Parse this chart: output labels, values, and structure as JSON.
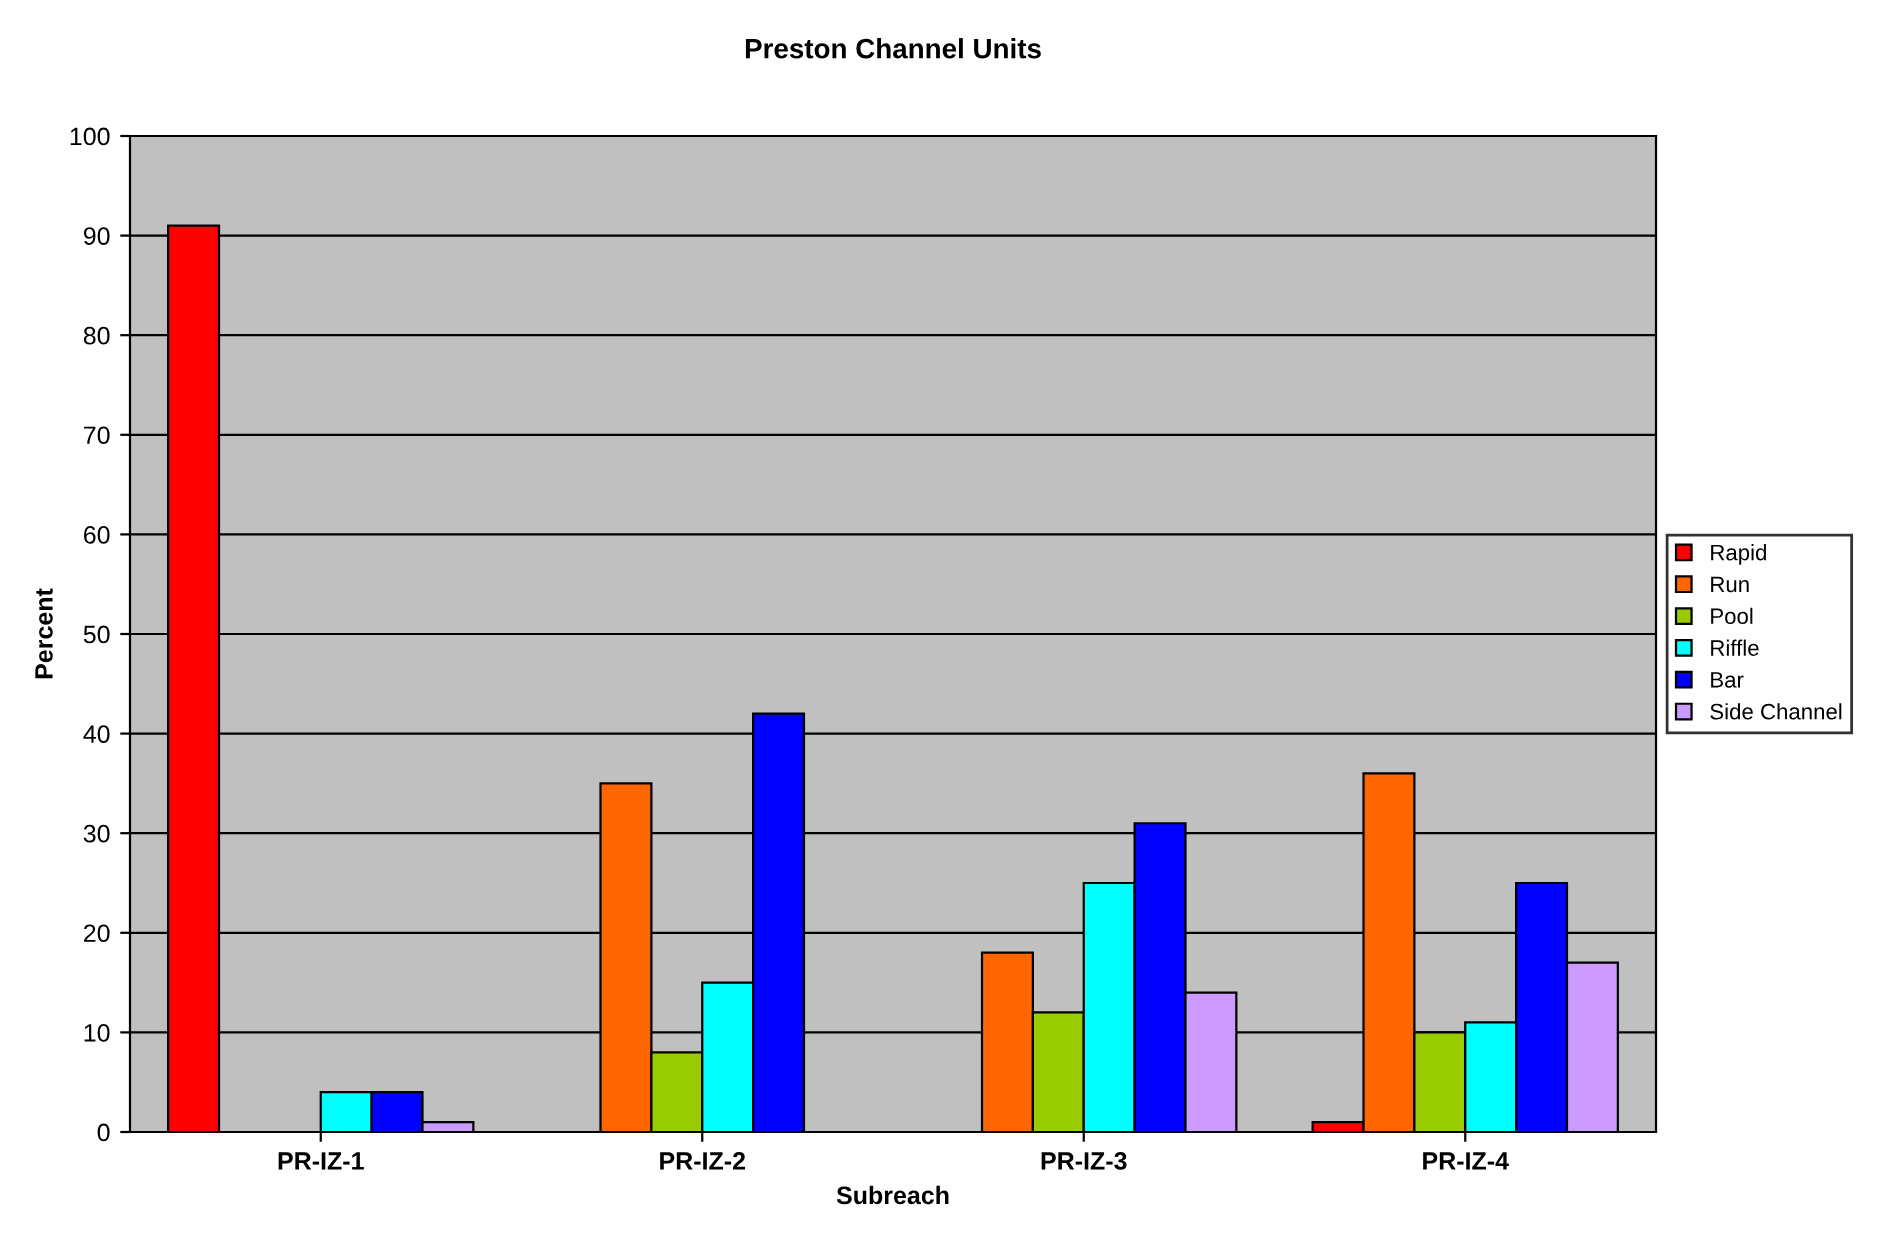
{
  "chart_data": {
    "type": "bar",
    "title": "Preston Channel Units",
    "xlabel": "Subreach",
    "ylabel": "Percent",
    "categories": [
      "PR-IZ-1",
      "PR-IZ-2",
      "PR-IZ-3",
      "PR-IZ-4"
    ],
    "series": [
      {
        "name": "Rapid",
        "color": "#ff0000",
        "values": [
          91,
          null,
          null,
          1
        ]
      },
      {
        "name": "Run",
        "color": "#ff6600",
        "values": [
          null,
          35,
          18,
          36
        ]
      },
      {
        "name": "Pool",
        "color": "#99cc00",
        "values": [
          null,
          8,
          12,
          10
        ]
      },
      {
        "name": "Riffle",
        "color": "#00ffff",
        "values": [
          4,
          15,
          25,
          11
        ]
      },
      {
        "name": "Bar",
        "color": "#0000ff",
        "values": [
          4,
          42,
          31,
          25
        ]
      },
      {
        "name": "Side Channel",
        "color": "#cc99ff",
        "values": [
          1,
          null,
          14,
          17
        ]
      }
    ],
    "ylim": [
      0,
      100
    ],
    "yticks": [
      0,
      10,
      20,
      30,
      40,
      50,
      60,
      70,
      80,
      90,
      100
    ],
    "grid": "y",
    "legend": "right"
  }
}
